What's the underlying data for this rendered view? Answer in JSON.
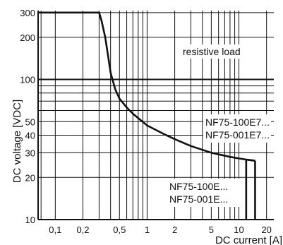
{
  "chart_data": {
    "type": "line",
    "x_scale": "log",
    "y_scale": "log",
    "xlim": [
      0.065,
      24
    ],
    "ylim": [
      10,
      310
    ],
    "xlabel": "DC current [A]",
    "ylabel": "DC voltage [VDC]",
    "x_tick_values": [
      0.1,
      0.2,
      0.5,
      1,
      2,
      5,
      10,
      20
    ],
    "x_tick_labels": [
      "0,1",
      "0,2",
      "0,5",
      "1",
      "2",
      "5",
      "10",
      "20"
    ],
    "y_tick_values": [
      10,
      20,
      30,
      40,
      50,
      100,
      200,
      300
    ],
    "y_tick_labels": [
      "10",
      "20",
      "30",
      "40",
      "50",
      "100",
      "200",
      "300"
    ],
    "x_grid": [
      0.07,
      0.1,
      0.2,
      0.3,
      0.4,
      0.5,
      0.6,
      0.7,
      0.8,
      0.9,
      1,
      2,
      3,
      4,
      5,
      6,
      7,
      8,
      9,
      10,
      20
    ],
    "y_grid": [
      20,
      30,
      40,
      50,
      60,
      70,
      80,
      90,
      100,
      200,
      300
    ],
    "y_bold_grid": [
      100
    ],
    "series": [
      {
        "x": [
          0.065,
          0.3,
          0.32,
          0.35,
          0.38,
          0.4,
          0.45,
          0.5,
          0.6,
          0.7,
          0.8,
          1.0,
          1.5,
          2.0,
          3.0,
          5.0,
          8.0,
          10.0,
          12.0,
          15.0
        ],
        "y": [
          300,
          300,
          260,
          200,
          140,
          112,
          85,
          73,
          63,
          57,
          53,
          47,
          41,
          37.5,
          33.5,
          30,
          28,
          27.3,
          26.8,
          26.3
        ]
      }
    ],
    "cutoffs": [
      {
        "x": 12,
        "y_from": 26.8,
        "y_to": 10
      },
      {
        "x": 15,
        "y_from": 26.3,
        "y_to": 10
      }
    ],
    "annotations": {
      "resistive": "resistive load",
      "e7_line1": "NF75-100E7...",
      "e7_line2": "NF75-001E7...",
      "e_line1": "NF75-100E...",
      "e_line2": "NF75-001E..."
    }
  }
}
